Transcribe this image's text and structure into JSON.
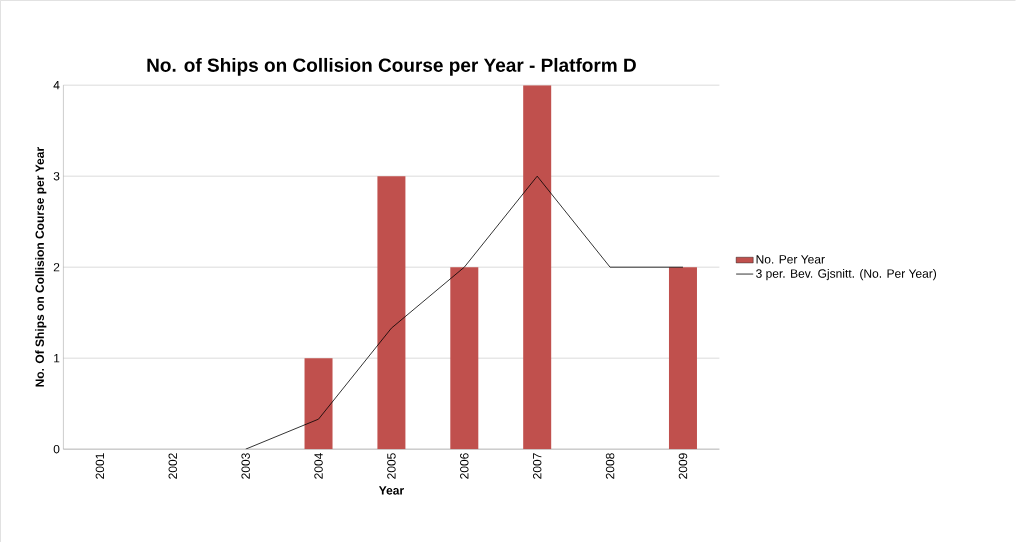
{
  "chart_data": {
    "type": "bar",
    "title": "No. of Ships on Collision Course per Year - Platform D",
    "xlabel": "Year",
    "ylabel": "No. Of Ships on Collision  Course per Year",
    "categories": [
      "2001",
      "2002",
      "2003",
      "2004",
      "2005",
      "2006",
      "2007",
      "2008",
      "2009"
    ],
    "series": [
      {
        "name": "No. Per Year",
        "color": "#c0504d",
        "values": [
          0,
          0,
          0,
          1,
          3,
          2,
          4,
          0,
          2
        ]
      },
      {
        "name": "3 per. Bev. Gjsnitt. (No. Per Year)",
        "type": "line",
        "color": "#000000",
        "values": [
          null,
          null,
          0,
          0.33,
          1.33,
          2,
          3,
          2,
          2
        ]
      }
    ],
    "ylim": [
      0,
      4
    ],
    "yticks": [
      0,
      1,
      2,
      3,
      4
    ],
    "grid": "y",
    "legend": "right",
    "marker": "none"
  }
}
